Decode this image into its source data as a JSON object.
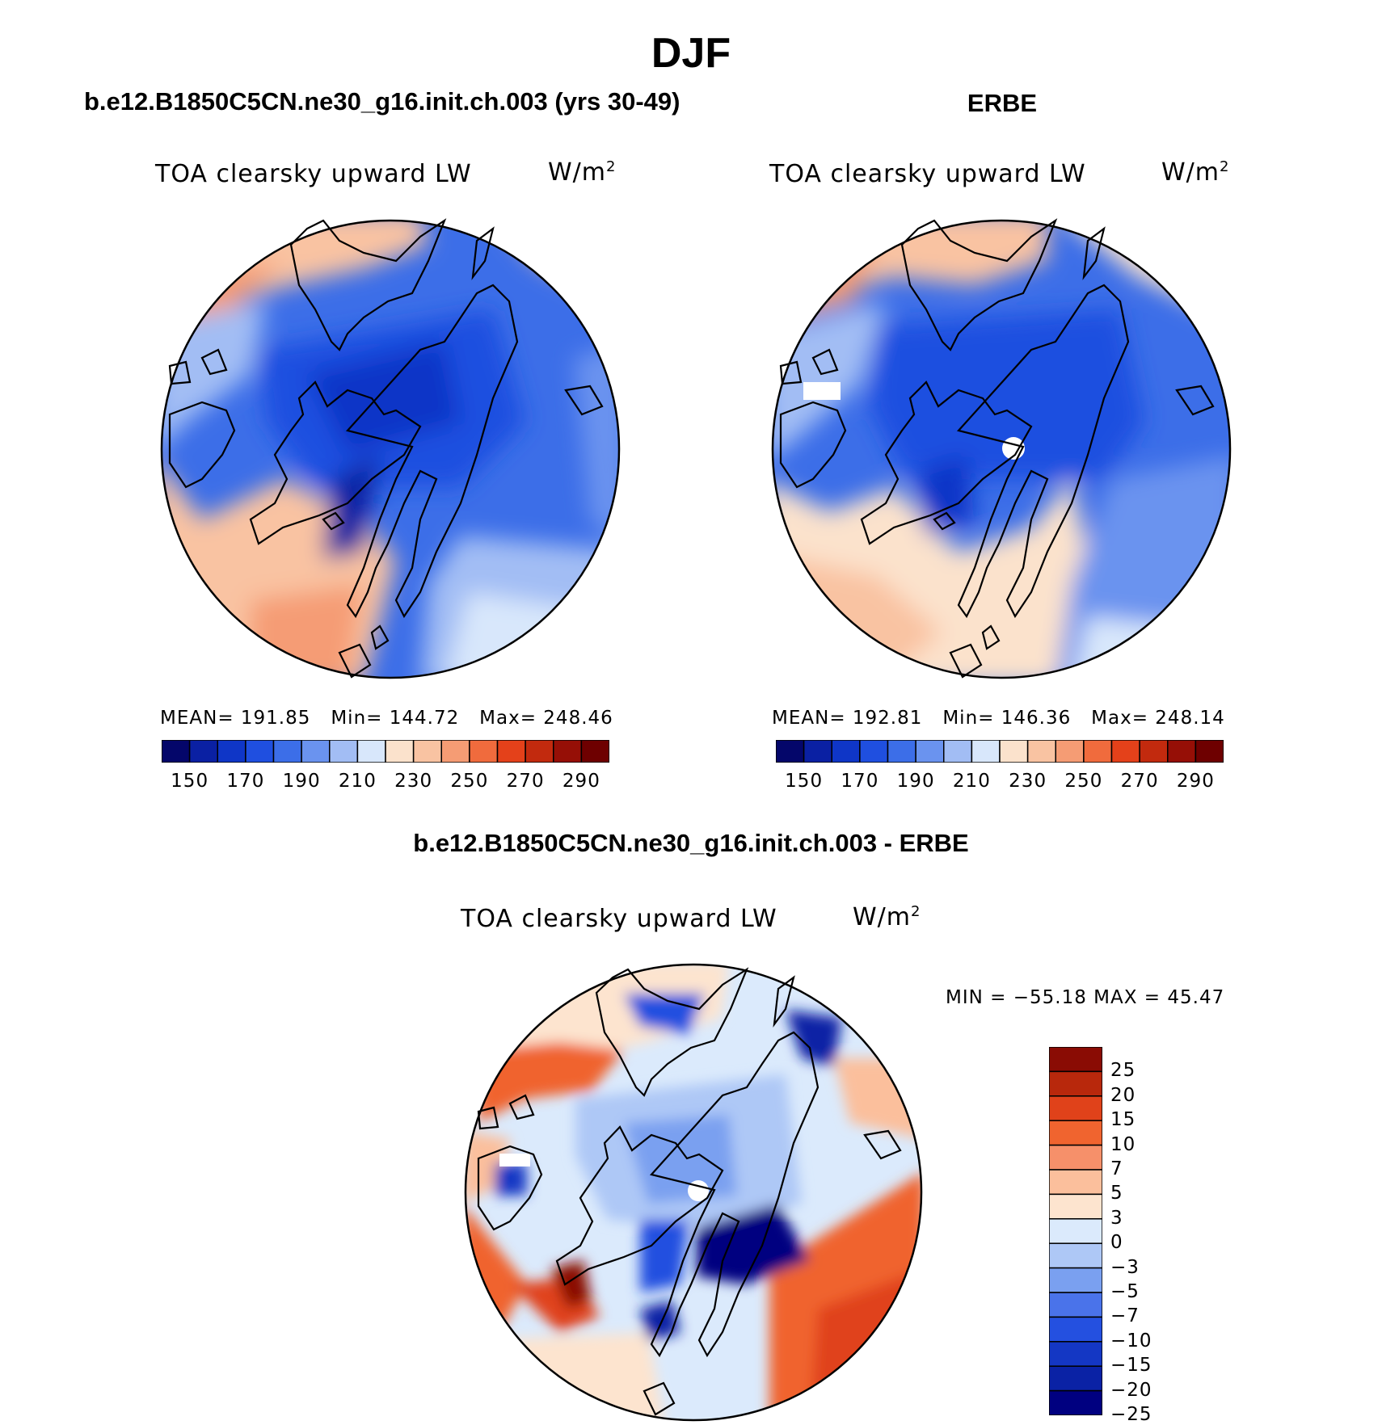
{
  "season": "DJF",
  "colors": {
    "abs_levels": [
      "#04066a",
      "#0a20a3",
      "#0f36c7",
      "#1f4fe0",
      "#3c6ee8",
      "#6a93ef",
      "#a2bdf4",
      "#d8e7fb",
      "#fbe2cc",
      "#f9c3a2",
      "#f59c74",
      "#f06b3d",
      "#e4411a",
      "#c22a0e",
      "#960f06",
      "#6e0000"
    ],
    "diff_levels": [
      "#000080",
      "#0a22a5",
      "#1437c4",
      "#2450e0",
      "#4a73ea",
      "#7aa0f0",
      "#aec8f6",
      "#dbeafc",
      "#fde4cf",
      "#fbbf9c",
      "#f6906a",
      "#f0642f",
      "#e0421a",
      "#b8280c",
      "#8a0c04"
    ]
  },
  "panels": [
    {
      "title": "b.e12.B1850C5CN.ne30_g16.init.ch.003 (yrs 30-49)",
      "variable": "TOA clearsky upward LW",
      "units": "W/m",
      "units_sup": "2",
      "stats": {
        "mean_label": "MEAN=",
        "mean": "191.85",
        "min_label": "Min=",
        "min": "144.72",
        "max_label": "Max=",
        "max": "248.46"
      }
    },
    {
      "title": "ERBE",
      "variable": "TOA clearsky upward LW",
      "units": "W/m",
      "units_sup": "2",
      "stats": {
        "mean_label": "MEAN=",
        "mean": "192.81",
        "min_label": "Min=",
        "min": "146.36",
        "max_label": "Max=",
        "max": "248.14"
      }
    }
  ],
  "abs_colorbar_labels": [
    "150",
    "170",
    "190",
    "210",
    "230",
    "250",
    "270",
    "290"
  ],
  "difference": {
    "title": "b.e12.B1850C5CN.ne30_g16.init.ch.003 - ERBE",
    "variable": "TOA clearsky upward LW",
    "units": "W/m",
    "units_sup": "2",
    "minmax": "MIN = −55.18 MAX =   45.47",
    "colorbar_labels": [
      "25",
      "20",
      "15",
      "10",
      "7",
      "5",
      "3",
      "0",
      "−3",
      "−5",
      "−7",
      "−10",
      "−15",
      "−20",
      "−25"
    ]
  }
}
